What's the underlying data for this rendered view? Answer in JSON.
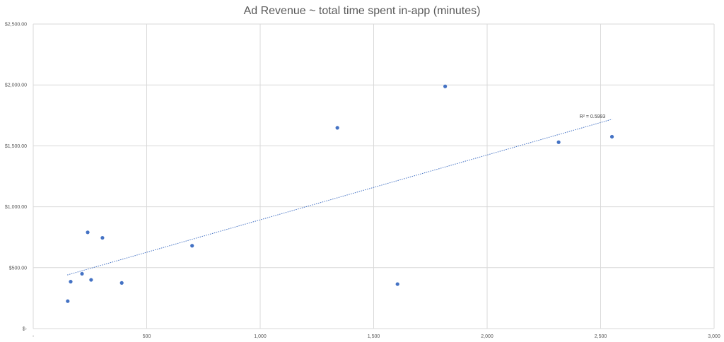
{
  "chart_data": {
    "type": "scatter",
    "title": "Ad Revenue ~ total time spent in-app (minutes)",
    "xlabel": "",
    "ylabel": "",
    "xlim": [
      0,
      3000
    ],
    "ylim": [
      0,
      2500
    ],
    "grid": true,
    "x_ticks": [
      0,
      500,
      1000,
      1500,
      2000,
      2500,
      3000
    ],
    "x_tick_labels": [
      "-",
      "500",
      "1,000",
      "1,500",
      "2,000",
      "2,500",
      "3,000"
    ],
    "y_ticks": [
      0,
      500,
      1000,
      1500,
      2000,
      2500
    ],
    "y_tick_labels": [
      "$-",
      "$500.00",
      "$1,000.00",
      "$1,500.00",
      "$2,000.00",
      "$2,500.00"
    ],
    "series": [
      {
        "color": "#4472c4",
        "points": [
          {
            "x": 152,
            "y": 225
          },
          {
            "x": 165,
            "y": 385
          },
          {
            "x": 215,
            "y": 450
          },
          {
            "x": 240,
            "y": 790
          },
          {
            "x": 255,
            "y": 400
          },
          {
            "x": 305,
            "y": 745
          },
          {
            "x": 390,
            "y": 375
          },
          {
            "x": 700,
            "y": 680
          },
          {
            "x": 1340,
            "y": 1648
          },
          {
            "x": 1605,
            "y": 365
          },
          {
            "x": 1815,
            "y": 1988
          },
          {
            "x": 2315,
            "y": 1530
          },
          {
            "x": 2550,
            "y": 1575
          }
        ]
      }
    ],
    "trendline": {
      "type": "linear",
      "color": "#4472c4",
      "x_range": [
        150,
        2550
      ],
      "y_at_start": 440,
      "y_at_end": 1718,
      "r2_label": "R² = 0.5993"
    }
  }
}
